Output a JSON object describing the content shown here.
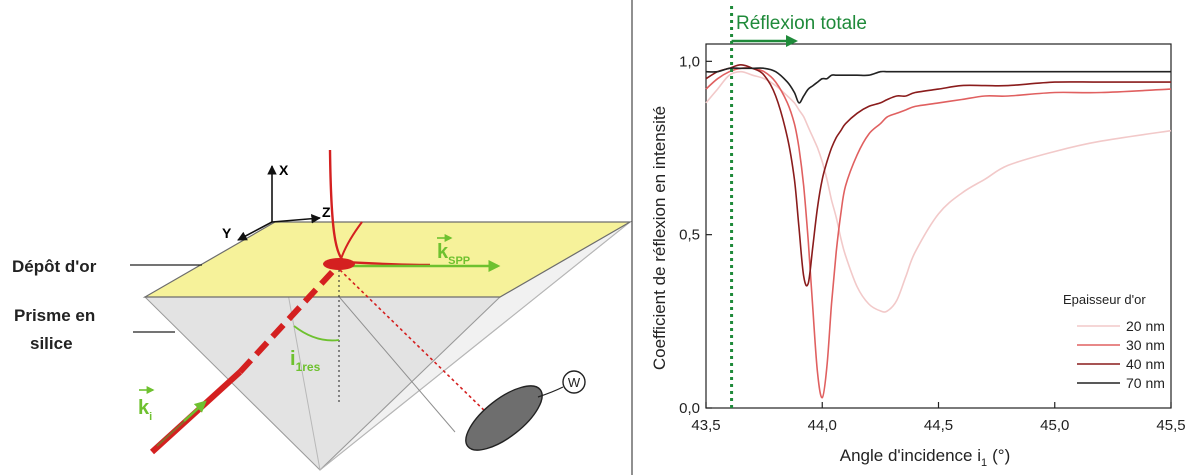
{
  "diagram": {
    "axis_x": "X",
    "axis_y": "Y",
    "axis_z": "Z",
    "gold_layer_label": "Dépôt d'or",
    "prism_label_line1": "Prisme en",
    "prism_label_line2": "silice",
    "wave_vector_spp": "k",
    "wave_vector_spp_sub": "SPP",
    "wave_vector_incident": "k",
    "wave_vector_incident_sub": "i",
    "angle_label": "i",
    "angle_label_sub": "1res",
    "detector_symbol": "W",
    "colors": {
      "gold": "#f6f29a",
      "prism": "#e9e9e9",
      "beam": "#d42020",
      "wave_vector": "#6ec12f"
    }
  },
  "chart_data": {
    "type": "line",
    "xlabel": "Angle d'incidence i",
    "xlabel_sub": "1",
    "xlabel_unit": "(°)",
    "ylabel": "Coefficient de réflexion en intensité",
    "xlim": [
      43.5,
      45.5
    ],
    "ylim": [
      0.0,
      1.05
    ],
    "x_ticks": [
      "43,5",
      "44,0",
      "44,5",
      "45,0",
      "45,5"
    ],
    "x_tick_values": [
      43.5,
      44.0,
      44.5,
      45.0,
      45.5
    ],
    "y_ticks": [
      "0,0",
      "0,5",
      "1,0"
    ],
    "y_tick_values": [
      0.0,
      0.5,
      1.0
    ],
    "annotation": "Réflexion totale",
    "critical_angle": 43.61,
    "legend_title": "Epaisseur d'or",
    "legend_position": "bottom-right",
    "x": [
      43.5,
      43.55,
      43.6,
      43.65,
      43.7,
      43.75,
      43.8,
      43.85,
      43.88,
      43.9,
      43.92,
      43.94,
      43.96,
      43.98,
      44.0,
      44.02,
      44.04,
      44.06,
      44.08,
      44.1,
      44.15,
      44.2,
      44.25,
      44.28,
      44.32,
      44.36,
      44.4,
      44.5,
      44.6,
      44.7,
      44.8,
      45.0,
      45.2,
      45.5
    ],
    "series": [
      {
        "name": "20 nm",
        "color": "#f2c9c9",
        "values": [
          0.88,
          0.92,
          0.96,
          0.97,
          0.96,
          0.95,
          0.93,
          0.9,
          0.88,
          0.86,
          0.84,
          0.81,
          0.78,
          0.75,
          0.71,
          0.66,
          0.6,
          0.55,
          0.49,
          0.44,
          0.35,
          0.3,
          0.28,
          0.28,
          0.31,
          0.38,
          0.45,
          0.56,
          0.62,
          0.66,
          0.7,
          0.74,
          0.77,
          0.8
        ]
      },
      {
        "name": "30 nm",
        "color": "#e06060",
        "values": [
          0.92,
          0.95,
          0.97,
          0.98,
          0.98,
          0.97,
          0.94,
          0.88,
          0.82,
          0.75,
          0.64,
          0.48,
          0.28,
          0.1,
          0.03,
          0.12,
          0.3,
          0.45,
          0.56,
          0.64,
          0.73,
          0.79,
          0.82,
          0.84,
          0.85,
          0.86,
          0.87,
          0.88,
          0.89,
          0.9,
          0.9,
          0.91,
          0.91,
          0.92
        ]
      },
      {
        "name": "40 nm",
        "color": "#8a1c1c",
        "values": [
          0.95,
          0.97,
          0.98,
          0.99,
          0.98,
          0.96,
          0.9,
          0.78,
          0.66,
          0.52,
          0.38,
          0.36,
          0.47,
          0.58,
          0.66,
          0.71,
          0.75,
          0.78,
          0.8,
          0.82,
          0.85,
          0.87,
          0.88,
          0.89,
          0.9,
          0.9,
          0.91,
          0.92,
          0.93,
          0.93,
          0.93,
          0.94,
          0.94,
          0.94
        ]
      },
      {
        "name": "70 nm",
        "color": "#222222",
        "values": [
          0.97,
          0.97,
          0.98,
          0.98,
          0.98,
          0.98,
          0.97,
          0.94,
          0.91,
          0.88,
          0.9,
          0.92,
          0.93,
          0.94,
          0.95,
          0.95,
          0.96,
          0.96,
          0.96,
          0.96,
          0.96,
          0.96,
          0.97,
          0.97,
          0.97,
          0.97,
          0.97,
          0.97,
          0.97,
          0.97,
          0.97,
          0.97,
          0.97,
          0.97
        ]
      }
    ],
    "annotation_color": "#1f8a3a",
    "grid": false
  }
}
